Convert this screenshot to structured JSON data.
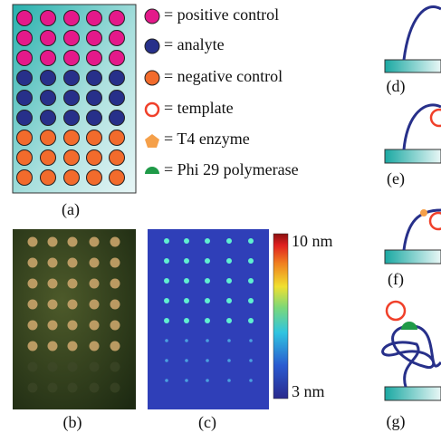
{
  "legend": [
    "= positive control",
    "= analyte",
    "= negative control",
    "= template",
    "= T4 enzyme",
    "= Phi 29 polymerase"
  ],
  "panels": {
    "a": "(a)",
    "b": "(b)",
    "c": "(c)",
    "d": "(d)",
    "e": "(e)",
    "f": "(f)",
    "g": "(g)"
  },
  "colorbar": {
    "max": "10 nm",
    "min": "3 nm"
  }
}
